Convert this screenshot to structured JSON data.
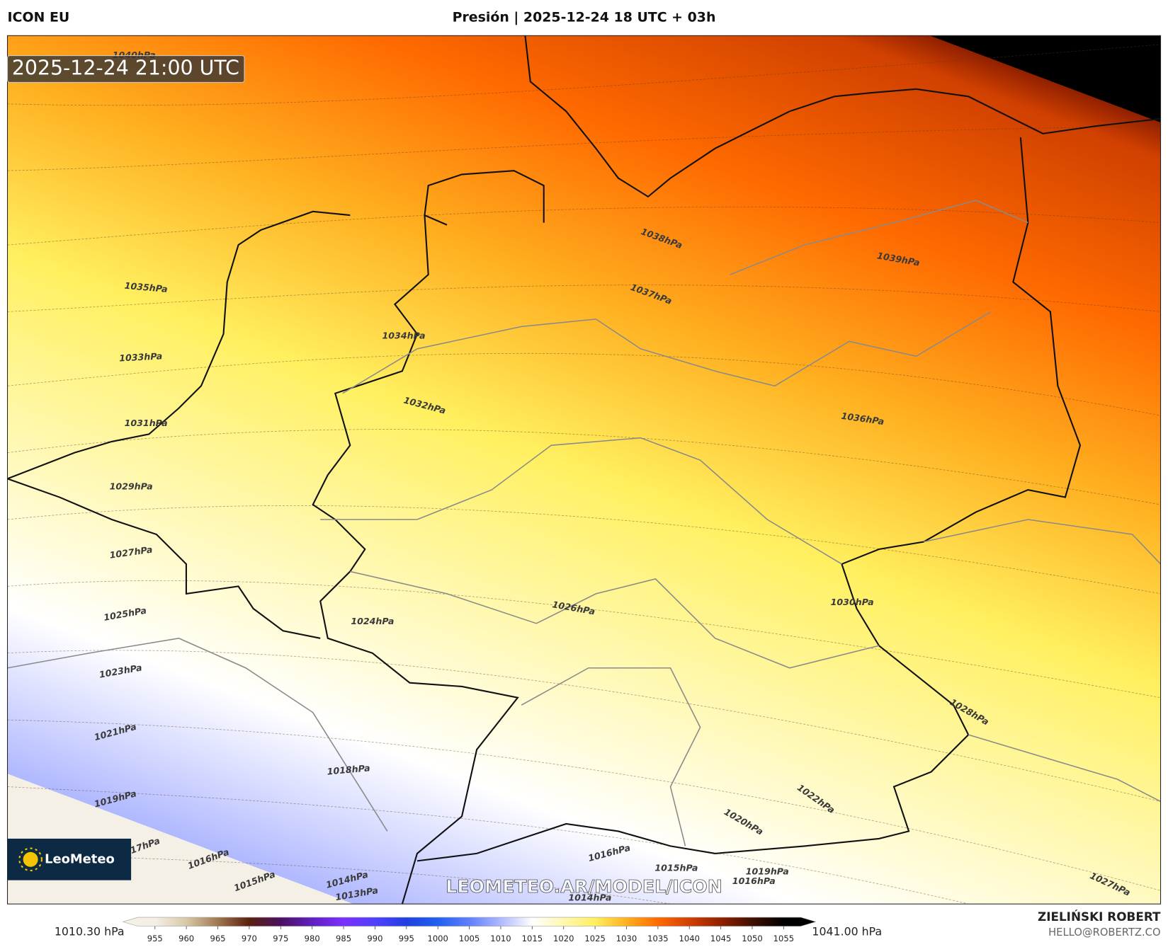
{
  "header": {
    "left": "ICON EU",
    "title": "Presión | 2025-12-24 18 UTC + 03h"
  },
  "timestamp": "2025-12-24 21:00 UTC",
  "logo": "LeoMeteo",
  "watermark": "LEOMETEO.AR/MODEL/ICON",
  "contour_labels": [
    "1040hPa",
    "1035hPa",
    "1033hPa",
    "1031hPa",
    "1029hPa",
    "1027hPa",
    "1025hPa",
    "1023hPa",
    "1021hPa",
    "1019hPa",
    "17hPa",
    "1016hPa",
    "1015hPa",
    "1014hPa",
    "1013hPa",
    "1018hPa",
    "1024hPa",
    "1032hPa",
    "1034hPa",
    "1026hPa",
    "1038hPa",
    "1037hPa",
    "1039hPa",
    "1036hPa",
    "1030hPa",
    "1028hPa",
    "1022hPa",
    "1020hPa",
    "1016hPa",
    "1015hPa",
    "1019hPa",
    "1016hPa",
    "1014hPa",
    "1027hPa"
  ],
  "colorbar": {
    "min_label": "1010.30 hPa",
    "max_label": "1041.00 hPa",
    "range": [
      1010.3,
      1041.0
    ],
    "ticks": [
      955,
      960,
      965,
      970,
      975,
      980,
      985,
      990,
      995,
      1000,
      1005,
      1010,
      1015,
      1020,
      1025,
      1030,
      1035,
      1040,
      1045,
      1050,
      1055
    ],
    "colors": [
      "#f5f0e6",
      "#d8c8a8",
      "#a07850",
      "#5a2010",
      "#4a1060",
      "#6020c0",
      "#7a30ff",
      "#5040ff",
      "#2040e0",
      "#2060f0",
      "#6080ff",
      "#b0b8ff",
      "#ffffff",
      "#fff8b0",
      "#fff060",
      "#ffb020",
      "#ff6a00",
      "#d04000",
      "#902000",
      "#401000",
      "#000000"
    ]
  },
  "credits": {
    "name": "ZIELIŃSKI ROBERT",
    "email": "HELLO@ROBERTZ.CO"
  }
}
